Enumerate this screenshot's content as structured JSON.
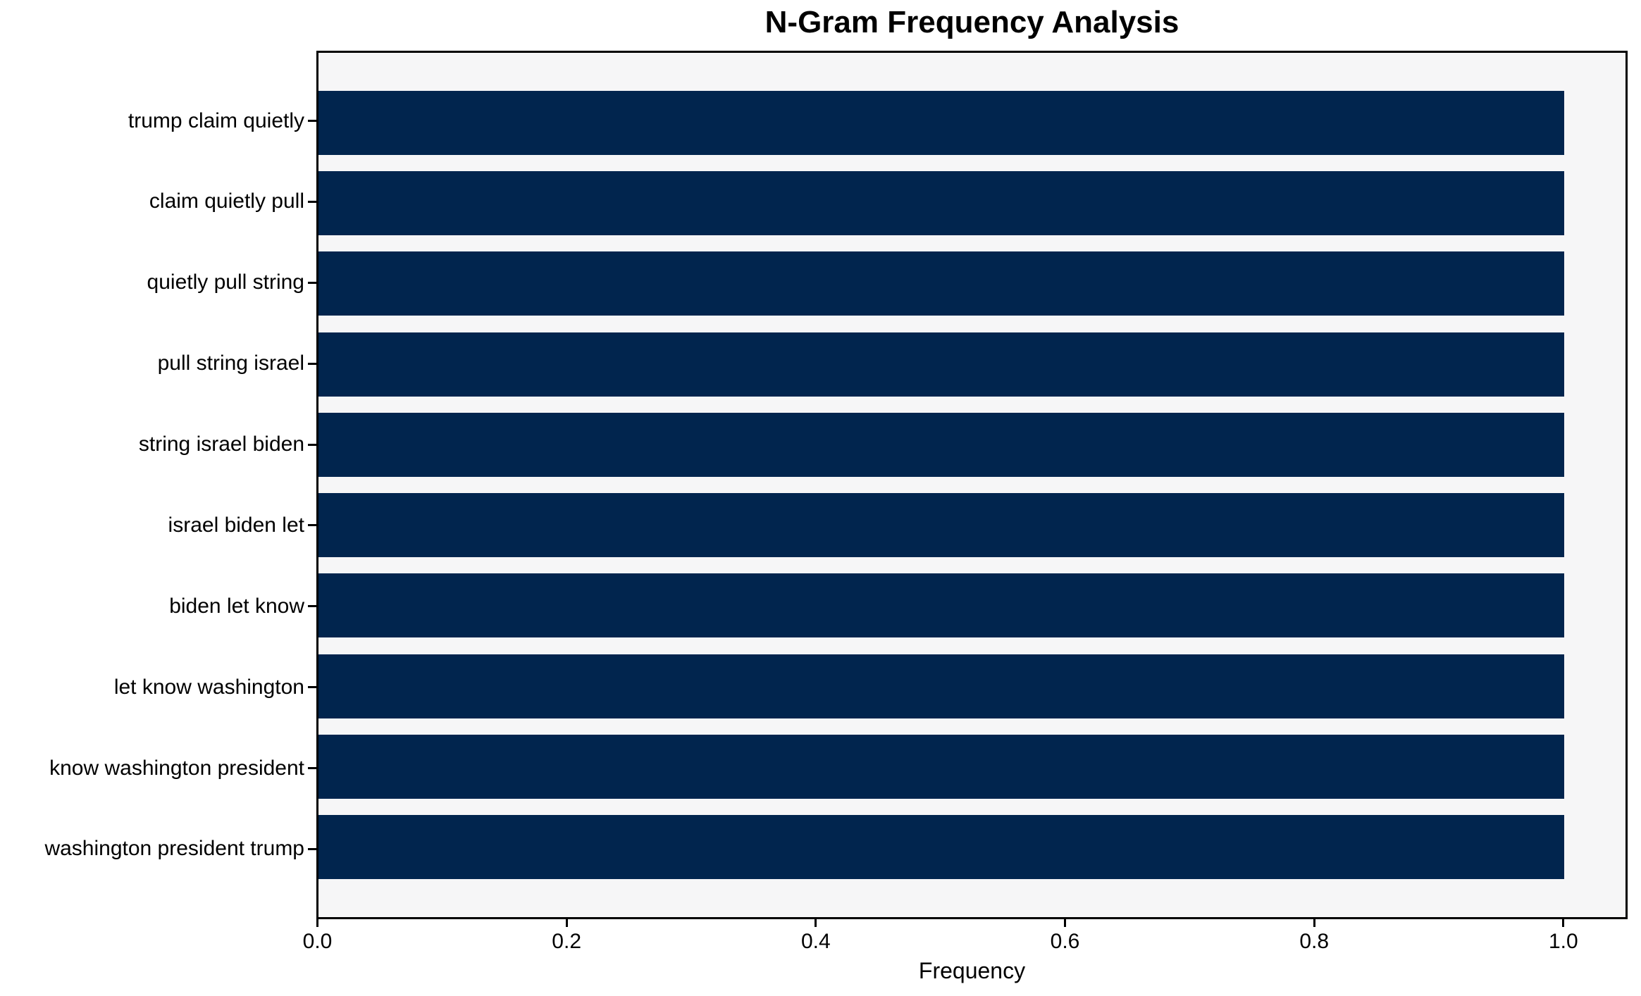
{
  "title": "N-Gram Frequency Analysis",
  "chart_data": {
    "type": "bar",
    "orientation": "horizontal",
    "title": "N-Gram Frequency Analysis",
    "xlabel": "Frequency",
    "ylabel": "",
    "categories": [
      "trump claim quietly",
      "claim quietly pull",
      "quietly pull string",
      "pull string israel",
      "string israel biden",
      "israel biden let",
      "biden let know",
      "let know washington",
      "know washington president",
      "washington president trump"
    ],
    "values": [
      1.0,
      1.0,
      1.0,
      1.0,
      1.0,
      1.0,
      1.0,
      1.0,
      1.0,
      1.0
    ],
    "x_ticks": [
      0.0,
      0.2,
      0.4,
      0.6,
      0.8,
      1.0
    ],
    "x_tick_labels": [
      "0.0",
      "0.2",
      "0.4",
      "0.6",
      "0.8",
      "1.0"
    ],
    "xlim": [
      0,
      1.049
    ],
    "grid": false,
    "legend": null,
    "colors": {
      "bar": "#01254e",
      "plot_background": "#f6f6f7",
      "figure_background": "#ffffff",
      "spine": "#000000",
      "text": "#000000"
    }
  }
}
